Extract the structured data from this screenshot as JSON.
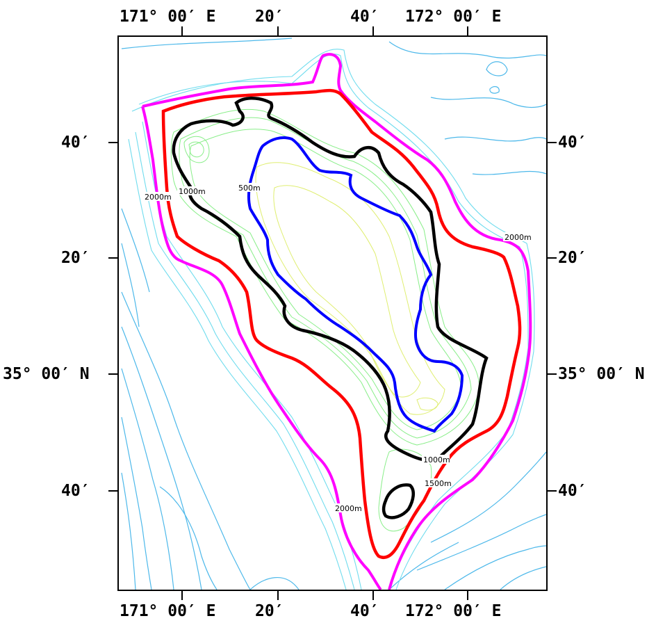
{
  "map": {
    "top_axis": [
      "171° 00′ E",
      "20′",
      "40′",
      "172° 00′ E"
    ],
    "bottom_axis": [
      "171° 00′ E",
      "20′",
      "40′",
      "172° 00′ E"
    ],
    "left_axis": [
      "40′",
      "20′",
      "35° 00′ N",
      "40′"
    ],
    "right_axis": [
      "40′",
      "20′",
      "35° 00′ N",
      "40′"
    ],
    "contour_labels": [
      "2000m",
      "1000m",
      "500m",
      "2000m",
      "1000m",
      "1500m",
      "2000m"
    ],
    "colors": {
      "c2000_outer": "#ff00ff",
      "c2000": "#ff0000",
      "c1000": "#000000",
      "c500": "#0000ff",
      "deep": "#33b5ee",
      "slope": "#66ddee",
      "mid": "#88ee88",
      "shallow": "#ddee66"
    }
  }
}
